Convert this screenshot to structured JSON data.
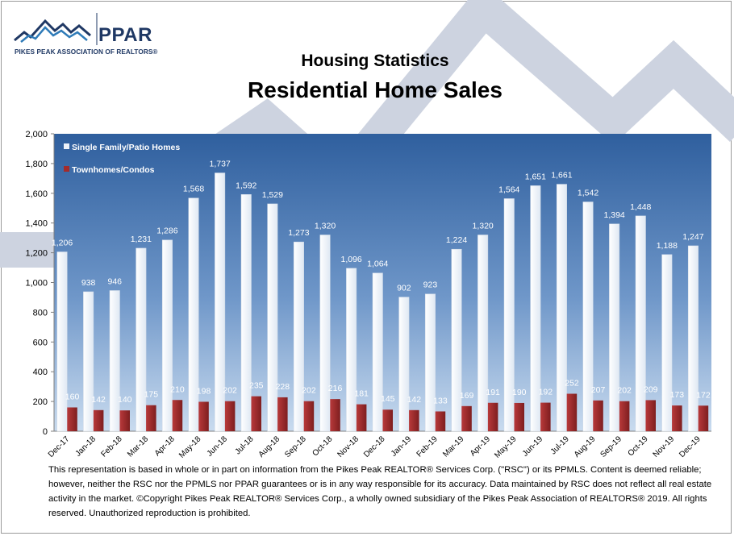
{
  "header": {
    "logo_text": "PPAR",
    "logo_subtitle": "PIKES PEAK ASSOCIATION OF REALTORS®",
    "title": "Housing Statistics",
    "subtitle": "Residential Home Sales"
  },
  "colors": {
    "brand_navy": "#1f3864",
    "plot_bg_top": "#2f5f9e",
    "plot_bg_bottom": "#bcd3ec",
    "bar_single_family": "#f2f6fb",
    "bar_townhome": "#9e2a2b",
    "background_chevron": "#cdd3e0"
  },
  "chart_data": {
    "type": "bar",
    "title": "Residential Home Sales",
    "categories": [
      "Dec-17",
      "Jan-18",
      "Feb-18",
      "Mar-18",
      "Apr-18",
      "May-18",
      "Jun-18",
      "Jul-18",
      "Aug-18",
      "Sep-18",
      "Oct-18",
      "Nov-18",
      "Dec-18",
      "Jan-19",
      "Feb-19",
      "Mar-19",
      "Apr-19",
      "May-19",
      "Jun-19",
      "Jul-19",
      "Aug-19",
      "Sep-19",
      "Oct-19",
      "Nov-19",
      "Dec-19"
    ],
    "series": [
      {
        "name": "Single Family/Patio Homes",
        "values": [
          1206,
          938,
          946,
          1231,
          1286,
          1568,
          1737,
          1592,
          1529,
          1273,
          1320,
          1096,
          1064,
          902,
          923,
          1224,
          1320,
          1564,
          1651,
          1661,
          1542,
          1394,
          1448,
          1188,
          1247
        ]
      },
      {
        "name": "Townhomes/Condos",
        "values": [
          160,
          142,
          140,
          175,
          210,
          198,
          202,
          235,
          228,
          202,
          216,
          181,
          145,
          142,
          133,
          169,
          191,
          190,
          192,
          252,
          207,
          202,
          209,
          173,
          172
        ]
      }
    ],
    "ylim": [
      0,
      2000
    ],
    "yticks": [
      "0",
      "200",
      "400",
      "600",
      "800",
      "1,000",
      "1,200",
      "1,400",
      "1,600",
      "1,800",
      "2,000"
    ],
    "grid": false,
    "legend_position": "top-left"
  },
  "footer": {
    "disclaimer": "This representation is based in whole or in part on information from the Pikes Peak REALTOR® Services Corp. (\"RSC\") or its PPMLS. Content is deemed reliable; however, neither the RSC nor the PPMLS nor PPAR guarantees or is in any way responsible for its accuracy. Data maintained by RSC does not reflect all real estate activity in the market. ©Copyright Pikes Peak REALTOR® Services Corp., a wholly owned subsidiary of the Pikes Peak Association of REALTORS® 2019. All rights reserved. Unauthorized reproduction is prohibited."
  }
}
